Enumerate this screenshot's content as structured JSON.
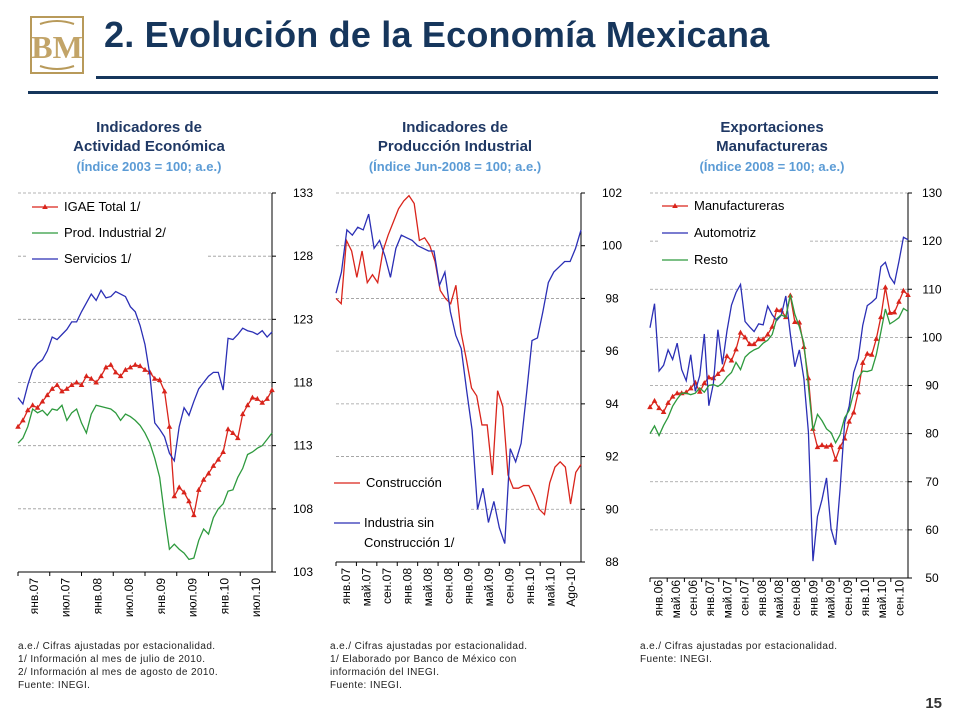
{
  "header": {
    "title": "2. Evolución de la Economía Mexicana",
    "logo_text": "BM"
  },
  "page_number": "15",
  "colors": {
    "red": "#d9241b",
    "green": "#2e9a3e",
    "blue": "#2b2fb5",
    "title": "#16365c",
    "subtitle": "#5b9bd5"
  },
  "panels": [
    {
      "title_line1": "Indicadores de",
      "title_line2": "Actividad Económica",
      "subtitle": "(Índice 2003 = 100; a.e.)",
      "notes": [
        "a.e./ Cifras ajustadas por estacionalidad.",
        "1/ Información al mes de julio de 2010.",
        "2/ Información al mes de agosto de 2010.",
        "Fuente: INEGI."
      ]
    },
    {
      "title_line1": "Indicadores de",
      "title_line2": "Producción Industrial",
      "subtitle": "(Índice Jun-2008 = 100; a.e.)",
      "notes": [
        "a.e./ Cifras ajustadas por estacionalidad.",
        "1/ Elaborado por Banco de México con",
        "información del INEGI.",
        "Fuente: INEGI."
      ]
    },
    {
      "title_line1": "Exportaciones",
      "title_line2": "Manufactureras",
      "subtitle": "(Índice 2008 = 100; a.e.)",
      "notes": [
        "a.e./ Cifras ajustadas por estacionalidad.",
        "Fuente: INEGI."
      ]
    }
  ],
  "chart_data": [
    {
      "type": "line",
      "ylim": [
        103,
        133
      ],
      "yticks": [
        103,
        108,
        113,
        118,
        123,
        128,
        133
      ],
      "xtick_labels": [
        "янв.07",
        "июл.07",
        "янв.08",
        "июл.08",
        "янв.09",
        "июл.09",
        "янв.10",
        "июл.10"
      ],
      "legend": [
        "IGAE Total 1/",
        "Prod. Industrial 2/",
        "Servicios 1/"
      ],
      "grid": true,
      "series": [
        {
          "name": "IGAE Total 1/",
          "color": "red",
          "markers": true,
          "values": [
            114.5,
            115.0,
            115.8,
            116.2,
            116.0,
            116.5,
            117.0,
            117.5,
            117.8,
            117.3,
            117.5,
            117.8,
            118.0,
            117.8,
            118.5,
            118.3,
            118.0,
            118.5,
            119.2,
            119.4,
            118.8,
            118.5,
            119.0,
            119.2,
            119.4,
            119.3,
            119.0,
            118.8,
            118.3,
            118.2,
            117.3,
            114.5,
            109.0,
            109.7,
            109.3,
            108.6,
            107.5,
            109.5,
            110.3,
            110.8,
            111.4,
            111.9,
            112.5,
            114.3,
            114.0,
            113.6,
            115.5,
            116.2,
            116.8,
            116.7,
            116.4,
            116.7,
            117.4
          ]
        },
        {
          "name": "Prod. Industrial 2/",
          "color": "green",
          "markers": false,
          "values": [
            113.2,
            113.6,
            114.5,
            115.9,
            115.6,
            115.8,
            115.4,
            115.9,
            115.8,
            116.2,
            115.0,
            115.6,
            115.9,
            114.8,
            114.0,
            115.5,
            116.2,
            116.1,
            116.0,
            115.9,
            115.6,
            115.0,
            115.5,
            115.3,
            115.0,
            114.6,
            114.0,
            113.2,
            112.0,
            110.5,
            107.5,
            104.8,
            105.2,
            104.8,
            104.5,
            104.0,
            104.1,
            105.5,
            106.4,
            106.0,
            107.3,
            108.0,
            108.4,
            109.4,
            109.5,
            110.5,
            111.2,
            112.3,
            112.5,
            112.8,
            113.0,
            113.5,
            114.0
          ]
        },
        {
          "name": "Servicios 1/",
          "color": "blue",
          "markers": false,
          "values": [
            116.8,
            116.3,
            117.8,
            119.0,
            119.5,
            119.8,
            120.5,
            121.6,
            121.4,
            121.8,
            122.2,
            122.8,
            122.8,
            123.6,
            124.3,
            125.0,
            124.5,
            125.3,
            124.7,
            124.8,
            125.2,
            125.0,
            124.8,
            124.0,
            123.6,
            122.5,
            121.0,
            118.6,
            114.8,
            114.3,
            113.7,
            112.4,
            111.8,
            114.5,
            116.0,
            115.4,
            116.5,
            117.5,
            118.0,
            118.5,
            118.8,
            118.8,
            117.4,
            121.5,
            121.4,
            121.8,
            122.3,
            122.1,
            122.0,
            121.8,
            122.1,
            121.6,
            122.0
          ]
        }
      ]
    },
    {
      "type": "line",
      "ylim": [
        88,
        102
      ],
      "yticks": [
        88,
        90,
        92,
        94,
        96,
        98,
        100,
        102
      ],
      "xtick_labels": [
        "янв.07",
        "май.07",
        "сен.07",
        "янв.08",
        "май.08",
        "сен.08",
        "янв.09",
        "май.09",
        "сен.09",
        "янв.10",
        "май.10",
        "Ago-10"
      ],
      "legend": [
        "Construcción",
        "Industria sin Construcción 1/"
      ],
      "grid": true,
      "series": [
        {
          "name": "Construcción",
          "color": "red",
          "markers": false,
          "values": [
            98.0,
            97.8,
            100.2,
            99.8,
            98.8,
            99.8,
            98.6,
            98.9,
            98.6,
            99.8,
            100.4,
            100.9,
            101.4,
            101.7,
            101.9,
            101.6,
            100.2,
            100.3,
            100.0,
            99.4,
            98.3,
            98.0,
            97.8,
            98.5,
            96.7,
            95.7,
            94.6,
            94.3,
            93.2,
            93.2,
            91.3,
            94.5,
            93.9,
            91.3,
            90.8,
            90.8,
            90.9,
            90.9,
            90.5,
            90.0,
            89.8,
            91.0,
            91.6,
            91.8,
            91.6,
            90.2,
            91.4,
            91.7
          ]
        },
        {
          "name": "Industria sin Construcción 1/",
          "color": "blue",
          "markers": false,
          "values": [
            98.2,
            99.0,
            100.6,
            100.4,
            100.7,
            100.6,
            101.2,
            99.9,
            100.2,
            99.6,
            98.8,
            99.9,
            100.4,
            100.3,
            100.2,
            100.0,
            99.9,
            99.8,
            99.8,
            98.5,
            99.0,
            97.5,
            96.6,
            96.1,
            94.5,
            93.0,
            90.0,
            90.8,
            89.5,
            90.3,
            89.3,
            88.7,
            92.3,
            91.8,
            92.5,
            94.4,
            96.4,
            96.5,
            97.5,
            98.6,
            99.0,
            99.2,
            99.4,
            99.4,
            99.9,
            100.6
          ]
        }
      ]
    },
    {
      "type": "line",
      "ylim": [
        50,
        130
      ],
      "yticks": [
        50,
        60,
        70,
        80,
        90,
        100,
        110,
        120,
        130
      ],
      "xtick_labels": [
        "янв.06",
        "май.06",
        "сен.06",
        "янв.07",
        "май.07",
        "сен.07",
        "янв.08",
        "май.08",
        "сен.08",
        "янв.09",
        "май.09",
        "сен.09",
        "янв.10",
        "май.10",
        "сен.10"
      ],
      "legend": [
        "Manufactureras",
        "Automotriz",
        "Resto"
      ],
      "grid": true,
      "series": [
        {
          "name": "Manufactureras",
          "color": "red",
          "markers": true,
          "values": [
            85.5,
            86.8,
            85.3,
            84.5,
            86.4,
            87.7,
            88.4,
            88.4,
            88.6,
            89.4,
            90.6,
            88.7,
            90.5,
            91.7,
            91.5,
            92.4,
            93.3,
            96.1,
            95.2,
            97.5,
            101.0,
            100.0,
            98.6,
            98.6,
            99.6,
            99.6,
            100.6,
            102.2,
            105.7,
            105.6,
            104.2,
            108.7,
            103.2,
            103.1,
            98.0,
            91.5,
            81.0,
            77.2,
            77.6,
            77.3,
            77.6,
            74.6,
            77.2,
            79.0,
            82.5,
            84.4,
            88.6,
            94.7,
            96.6,
            96.4,
            99.7,
            104.2,
            110.4,
            105.1,
            105.2,
            107.4,
            109.7,
            108.8
          ]
        },
        {
          "name": "Automotriz",
          "color": "blue",
          "markers": false,
          "values": [
            102.0,
            107.0,
            93.0,
            94.2,
            97.4,
            95.4,
            98.8,
            93.3,
            91.0,
            96.4,
            88.8,
            92.1,
            100.7,
            85.8,
            90.4,
            101.6,
            94.4,
            101.3,
            106.7,
            109.3,
            111.0,
            103.3,
            102.2,
            101.2,
            102.8,
            102.6,
            106.5,
            104.7,
            103.5,
            104.6,
            108.6,
            100.7,
            93.9,
            97.4,
            91.4,
            80.3,
            53.5,
            62.8,
            66.3,
            70.8,
            60.2,
            56.9,
            68.5,
            82.3,
            85.7,
            92.7,
            95.6,
            102.5,
            106.6,
            107.3,
            108.2,
            114.7,
            115.6,
            112.6,
            111.2,
            115.8,
            120.8,
            120.3
          ]
        },
        {
          "name": "Resto",
          "color": "green",
          "markers": false,
          "values": [
            80.0,
            81.6,
            79.6,
            81.7,
            83.4,
            85.7,
            87.2,
            88.4,
            88.4,
            88.1,
            88.4,
            89.5,
            88.6,
            90.0,
            90.2,
            89.8,
            90.5,
            91.8,
            92.7,
            94.8,
            93.3,
            95.9,
            96.8,
            97.4,
            97.8,
            98.8,
            99.4,
            100.6,
            103.9,
            104.7,
            104.2,
            108.9,
            104.8,
            102.2,
            98.8,
            89.8,
            80.6,
            84.0,
            82.7,
            81.0,
            80.2,
            78.1,
            79.8,
            83.3,
            84.8,
            88.5,
            91.5,
            93.0,
            92.9,
            93.2,
            96.4,
            101.1,
            105.9,
            102.8,
            103.4,
            104.1,
            106.0,
            105.4
          ]
        }
      ]
    }
  ]
}
